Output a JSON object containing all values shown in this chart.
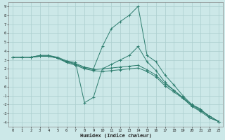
{
  "xlabel": "Humidex (Indice chaleur)",
  "bg_color": "#cce8e8",
  "grid_color": "#aacece",
  "line_color": "#2d7d6e",
  "xlim": [
    -0.5,
    23.5
  ],
  "ylim": [
    -4.5,
    9.5
  ],
  "xticks": [
    0,
    1,
    2,
    3,
    4,
    5,
    6,
    7,
    8,
    9,
    10,
    11,
    12,
    13,
    14,
    15,
    16,
    17,
    18,
    19,
    20,
    21,
    22,
    23
  ],
  "yticks": [
    -4,
    -3,
    -2,
    -1,
    0,
    1,
    2,
    3,
    4,
    5,
    6,
    7,
    8,
    9
  ],
  "series": [
    [
      3.3,
      3.3,
      3.3,
      3.5,
      3.5,
      3.2,
      2.8,
      2.6,
      2.2,
      2.0,
      4.5,
      6.5,
      7.3,
      8.0,
      9.0,
      3.5,
      2.8,
      1.3,
      0.2,
      -1.0,
      -2.0,
      -2.5,
      -3.5,
      -3.9
    ],
    [
      3.3,
      3.3,
      3.3,
      3.5,
      3.5,
      3.3,
      2.9,
      2.7,
      -1.8,
      -1.2,
      2.0,
      2.5,
      3.0,
      3.5,
      4.5,
      2.8,
      1.8,
      0.5,
      -0.4,
      -1.3,
      -2.2,
      -2.8,
      -3.5,
      -3.9
    ],
    [
      3.3,
      3.3,
      3.3,
      3.4,
      3.4,
      3.2,
      2.8,
      2.5,
      2.1,
      1.9,
      2.0,
      2.1,
      2.2,
      2.3,
      2.4,
      1.9,
      1.3,
      0.3,
      -0.4,
      -1.2,
      -2.0,
      -2.6,
      -3.3,
      -3.9
    ],
    [
      3.3,
      3.3,
      3.3,
      3.4,
      3.4,
      3.2,
      2.7,
      2.4,
      2.0,
      1.8,
      1.7,
      1.8,
      1.9,
      2.0,
      2.1,
      1.7,
      1.1,
      0.1,
      -0.6,
      -1.3,
      -2.1,
      -2.7,
      -3.3,
      -3.9
    ]
  ]
}
